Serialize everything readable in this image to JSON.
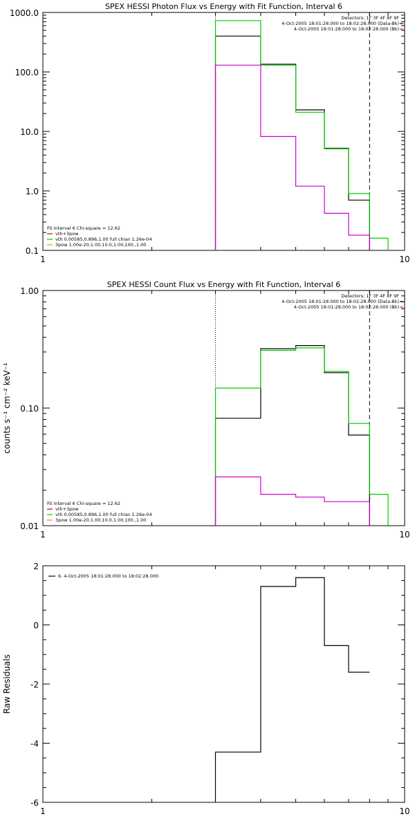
{
  "chart_data": [
    {
      "type": "line",
      "title": "SPEX HESSI Photon Flux vs Energy with Fit Function, Interval 6",
      "xscale": "log",
      "yscale": "log",
      "xlim": [
        1,
        10
      ],
      "ylim": [
        0.1,
        1000
      ],
      "xticks": [
        1,
        10
      ],
      "xtick_labels": [
        "1",
        "10"
      ],
      "yticks": [
        0.1,
        1,
        10,
        100,
        1000
      ],
      "ytick_labels": [
        "0.1",
        "1.0",
        "10.0",
        "100.0",
        "1000.0"
      ],
      "vlines": [
        {
          "x": 3,
          "style": "dotted"
        },
        {
          "x": 8,
          "style": "dashed"
        }
      ],
      "legend_tr": [
        {
          "text": "Detectors: 1F 3F 4F 8F 9F",
          "color": "#000000"
        },
        {
          "text": "4-Oct-2005 18:01:28.000 to 18:02:28.000 (Data-Bk)",
          "color": "#000000"
        },
        {
          "text": "4-Oct-2005 18:01:28.000 to 18:02:28.000 (Bk)",
          "color": "#cc00cc"
        }
      ],
      "legend_bl": [
        {
          "text": "Fit Interval  6    Chi-square = 12.62",
          "color": "#000000",
          "line": false
        },
        {
          "text": "vth+3pow",
          "color": "#cc0000",
          "line": true
        },
        {
          "text": "vth 0.00585,0.896,1.00  full chian 1.26e-04",
          "color": "#00cc00",
          "line": true
        },
        {
          "text": "3pow 1.00e-20,1.00,10.0,1.00,100.,1.00",
          "color": "#e0a000",
          "line": true
        }
      ],
      "series": [
        {
          "color": "#000000",
          "edges": [
            3,
            4,
            5,
            6,
            7,
            8
          ],
          "values": [
            400,
            135,
            23,
            5.2,
            0.7
          ]
        },
        {
          "color": "#00cc00",
          "edges": [
            3,
            4,
            5,
            6,
            7,
            8,
            9
          ],
          "values": [
            730,
            130,
            21,
            5.1,
            0.9,
            0.16
          ]
        },
        {
          "color": "#cc00cc",
          "edges": [
            3,
            4,
            5,
            6,
            7,
            8
          ],
          "values": [
            130,
            8.2,
            1.2,
            0.42,
            0.18
          ]
        }
      ]
    },
    {
      "type": "line",
      "title": "SPEX HESSI Count Flux vs Energy with Fit Function, Interval 6",
      "ylabel": "counts s⁻¹ cm⁻² keV⁻¹",
      "xscale": "log",
      "yscale": "log",
      "xlim": [
        1,
        10
      ],
      "ylim": [
        0.01,
        1
      ],
      "xticks": [
        1,
        10
      ],
      "xtick_labels": [
        "1",
        "10"
      ],
      "yticks": [
        0.01,
        0.1,
        1
      ],
      "ytick_labels": [
        "0.01",
        "0.10",
        "1.00"
      ],
      "vlines": [
        {
          "x": 3,
          "style": "dotted"
        },
        {
          "x": 8,
          "style": "dashed"
        }
      ],
      "legend_tr": [
        {
          "text": "Detectors: 1F 3F 4F 8F 9F",
          "color": "#000000"
        },
        {
          "text": "4-Oct-2005 18:01:28.000 to 18:02:28.000 (Data-Bk)",
          "color": "#000000"
        },
        {
          "text": "4-Oct-2005 18:01:28.000 to 18:02:28.000 (Bk)",
          "color": "#cc00cc"
        }
      ],
      "legend_bl": [
        {
          "text": "Fit Interval  6    Chi-square = 12.62",
          "color": "#000000",
          "line": false
        },
        {
          "text": "vth+3pow",
          "color": "#cc0000",
          "line": true
        },
        {
          "text": "vth 0.00585,0.896,1.00  full chian 1.26e-04",
          "color": "#00cc00",
          "line": true
        },
        {
          "text": "3pow 1.00e-20,1.00,10.0,1.00,100.,1.00",
          "color": "#e0a000",
          "line": true
        }
      ],
      "series": [
        {
          "color": "#000000",
          "edges": [
            3,
            4,
            5,
            6,
            7,
            8
          ],
          "values": [
            0.082,
            0.32,
            0.34,
            0.2,
            0.059
          ]
        },
        {
          "color": "#00cc00",
          "edges": [
            3,
            4,
            5,
            6,
            7,
            8,
            9
          ],
          "values": [
            0.148,
            0.31,
            0.325,
            0.205,
            0.074,
            0.0185
          ]
        },
        {
          "color": "#cc00cc",
          "edges": [
            3,
            4,
            5,
            6,
            7,
            8
          ],
          "values": [
            0.026,
            0.0185,
            0.0175,
            0.016,
            0.016
          ]
        }
      ]
    },
    {
      "type": "line",
      "title": "",
      "ylabel": "Raw Residuals",
      "xscale": "log",
      "yscale": "linear",
      "xlim": [
        1,
        10
      ],
      "ylim": [
        -6,
        2
      ],
      "xticks": [
        1,
        10
      ],
      "xtick_labels": [
        "1",
        "10"
      ],
      "yticks": [
        -6,
        -4,
        -2,
        0,
        2
      ],
      "ytick_labels": [
        "-6",
        "-4",
        "-2",
        "0",
        "2"
      ],
      "vlines": [],
      "legend_tl": [
        {
          "text": "6.  4-Oct-2005 18:01:28.000 to 18:02:28.000",
          "color": "#000000"
        }
      ],
      "legend_tr": [],
      "legend_bl": [],
      "series": [
        {
          "color": "#000000",
          "edges": [
            3,
            4,
            5,
            6,
            7,
            8
          ],
          "values": [
            -4.3,
            1.3,
            1.6,
            -0.7,
            -1.6
          ]
        }
      ]
    }
  ]
}
